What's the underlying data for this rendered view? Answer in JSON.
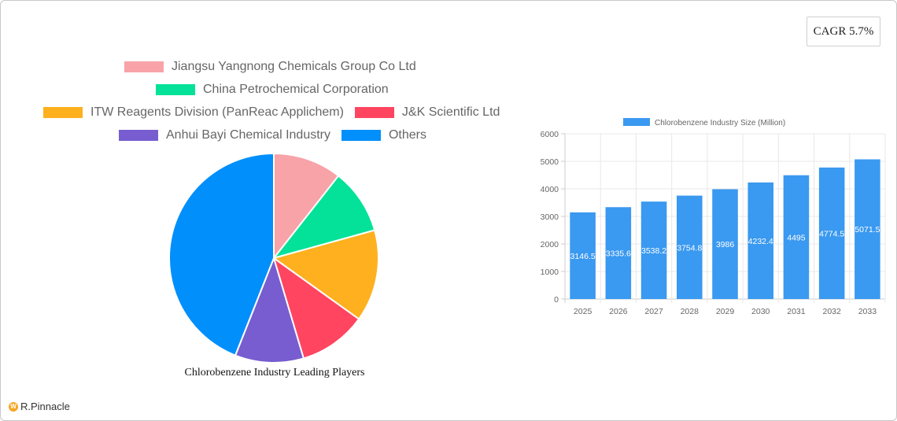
{
  "cagr_badge": {
    "label": "CAGR 5.7%"
  },
  "brand": {
    "name": "R.Pinnacle"
  },
  "chart_data": [
    {
      "type": "pie",
      "title": "Chlorobenzene Industry Leading Players",
      "legend_position": "top",
      "categories": [
        "Jiangsu Yangnong Chemicals Group Co  Ltd",
        "China Petrochemical Corporation",
        "ITW Reagents Division (PanReac Applichem)",
        "J&K Scientific Ltd",
        "Anhui Bayi Chemical Industry",
        "Others"
      ],
      "values": [
        10.6,
        10.1,
        14.2,
        10.5,
        10.6,
        44.0
      ],
      "colors": [
        "#f7a3a8",
        "#03e298",
        "#feb01f",
        "#ff4560",
        "#775dd0",
        "#008ffb"
      ]
    },
    {
      "type": "bar",
      "title": "",
      "legend": [
        "Chlorobenzene Industry Size (Million)"
      ],
      "legend_position": "top",
      "categories": [
        "2025",
        "2026",
        "2027",
        "2028",
        "2029",
        "2030",
        "2031",
        "2032",
        "2033"
      ],
      "values": [
        3146.5,
        3335.6,
        3538.2,
        3754.8,
        3986,
        4232.4,
        4495,
        4774.5,
        5071.5
      ],
      "value_labels": [
        "3146.5",
        "3335.6",
        "3538.2",
        "3754.8",
        "3986",
        "4232.4",
        "4495",
        "4774.5",
        "5071.5"
      ],
      "xlabel": "",
      "ylabel": "",
      "ylim": [
        0,
        6000
      ],
      "yticks": [
        "0",
        "1000",
        "2000",
        "3000",
        "4000",
        "5000",
        "6000"
      ],
      "grid": true,
      "color": "#3a99f0"
    }
  ]
}
